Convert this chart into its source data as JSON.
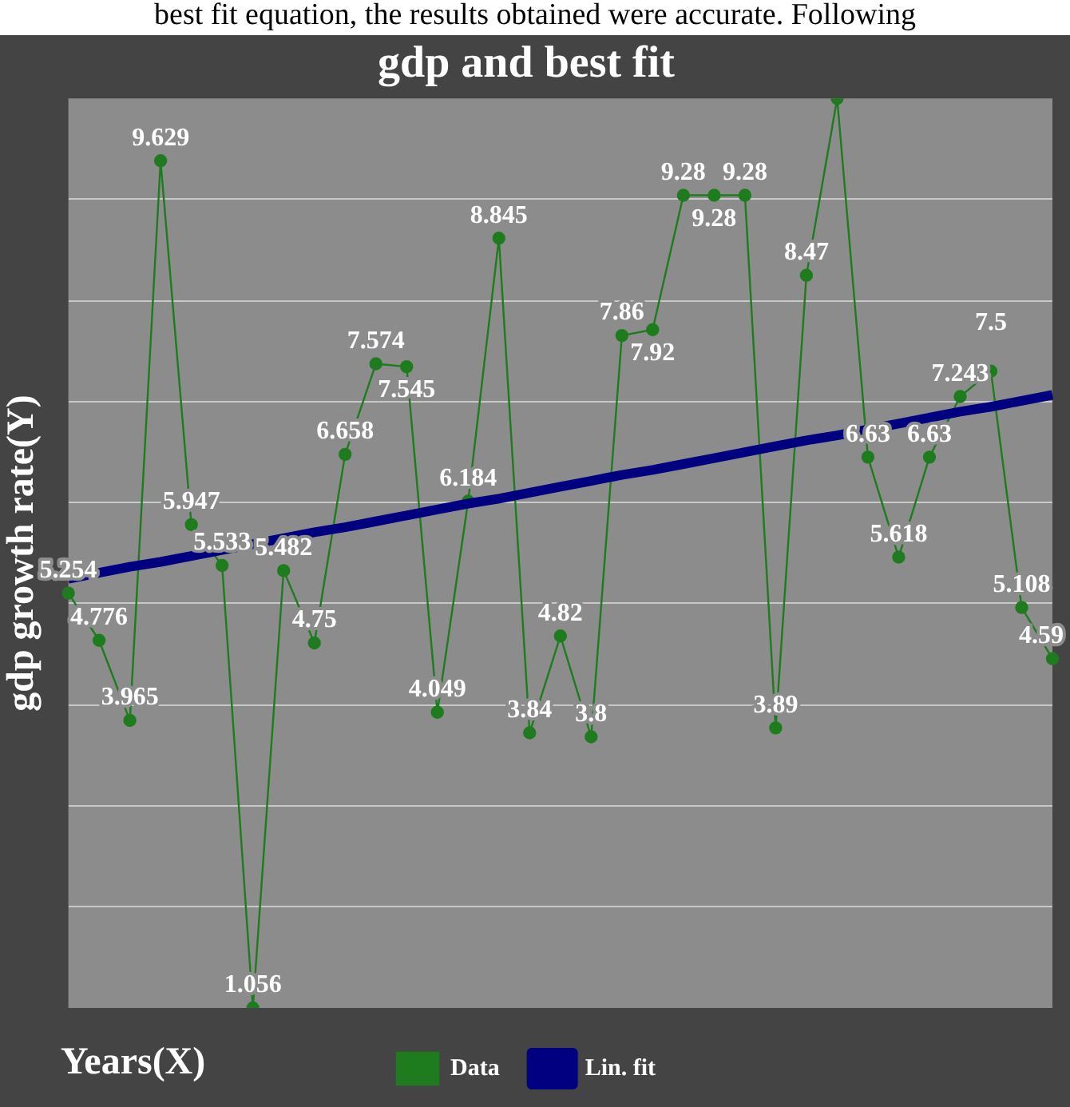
{
  "chart_data": {
    "type": "line",
    "title": "gdp and best fit",
    "xlabel": "Years(X)",
    "ylabel": "gdp growth rate(Y)",
    "annotations": [
      "best fit equation, the results obtained were accurate. Following"
    ],
    "categories": [
      null,
      null,
      null,
      null,
      null,
      null,
      null,
      null,
      null,
      null,
      null,
      null,
      null,
      null,
      null,
      null,
      null,
      null,
      null,
      null,
      null,
      null,
      null,
      null,
      null,
      null,
      null,
      null,
      null,
      null,
      null,
      null,
      null
    ],
    "series": [
      {
        "name": "Data",
        "color": "#1e7b1e",
        "marker": "circle",
        "values": [
          5.254,
          4.776,
          3.965,
          9.629,
          5.947,
          5.533,
          1.056,
          5.482,
          4.75,
          6.658,
          7.574,
          7.545,
          4.049,
          6.184,
          8.845,
          3.84,
          4.82,
          3.8,
          7.86,
          7.92,
          9.28,
          9.28,
          9.28,
          3.89,
          8.47,
          10.26,
          6.63,
          5.618,
          6.63,
          7.243,
          7.5,
          5.108,
          4.59
        ],
        "value_labels": [
          "5.254",
          "4.776",
          "3.965",
          "9.629",
          "5.947",
          "5.533",
          "1.056",
          "5.482",
          "4.75",
          "6.658",
          "7.574",
          "7.545",
          "4.049",
          "6.184",
          "8.845",
          "3.84",
          "4.82",
          "3.8",
          "7.86",
          "7.92",
          "9.28",
          "9.28",
          "9.28",
          "3.89",
          "8.47",
          null,
          "6.63",
          "5.618",
          "6.63",
          "7.243",
          "7.5",
          "5.108",
          "4.59"
        ]
      },
      {
        "name": "Lin. fit",
        "color": "#000080",
        "marker": "none",
        "values": [
          5.4,
          5.46,
          5.52,
          5.57,
          5.63,
          5.69,
          5.75,
          5.81,
          5.87,
          5.92,
          5.98,
          6.04,
          6.1,
          6.16,
          6.21,
          6.27,
          6.33,
          6.39,
          6.45,
          6.5,
          6.56,
          6.62,
          6.68,
          6.74,
          6.8,
          6.85,
          6.91,
          6.97,
          7.03,
          7.09,
          7.14,
          7.2,
          7.26
        ]
      }
    ],
    "ylim": [
      1.056,
      10.26
    ],
    "yticks": [
      {
        "value": 2.08,
        "label": null
      },
      {
        "value": 3.1,
        "label": null
      },
      {
        "value": 4.12,
        "label": null
      },
      {
        "value": 5.15,
        "label": null
      },
      {
        "value": 6.17,
        "label": null
      },
      {
        "value": 7.19,
        "label": null
      },
      {
        "value": 8.21,
        "label": null
      },
      {
        "value": 9.24,
        "label": null
      }
    ],
    "grid": "y",
    "legend": "bottom",
    "tick_labels": false
  }
}
